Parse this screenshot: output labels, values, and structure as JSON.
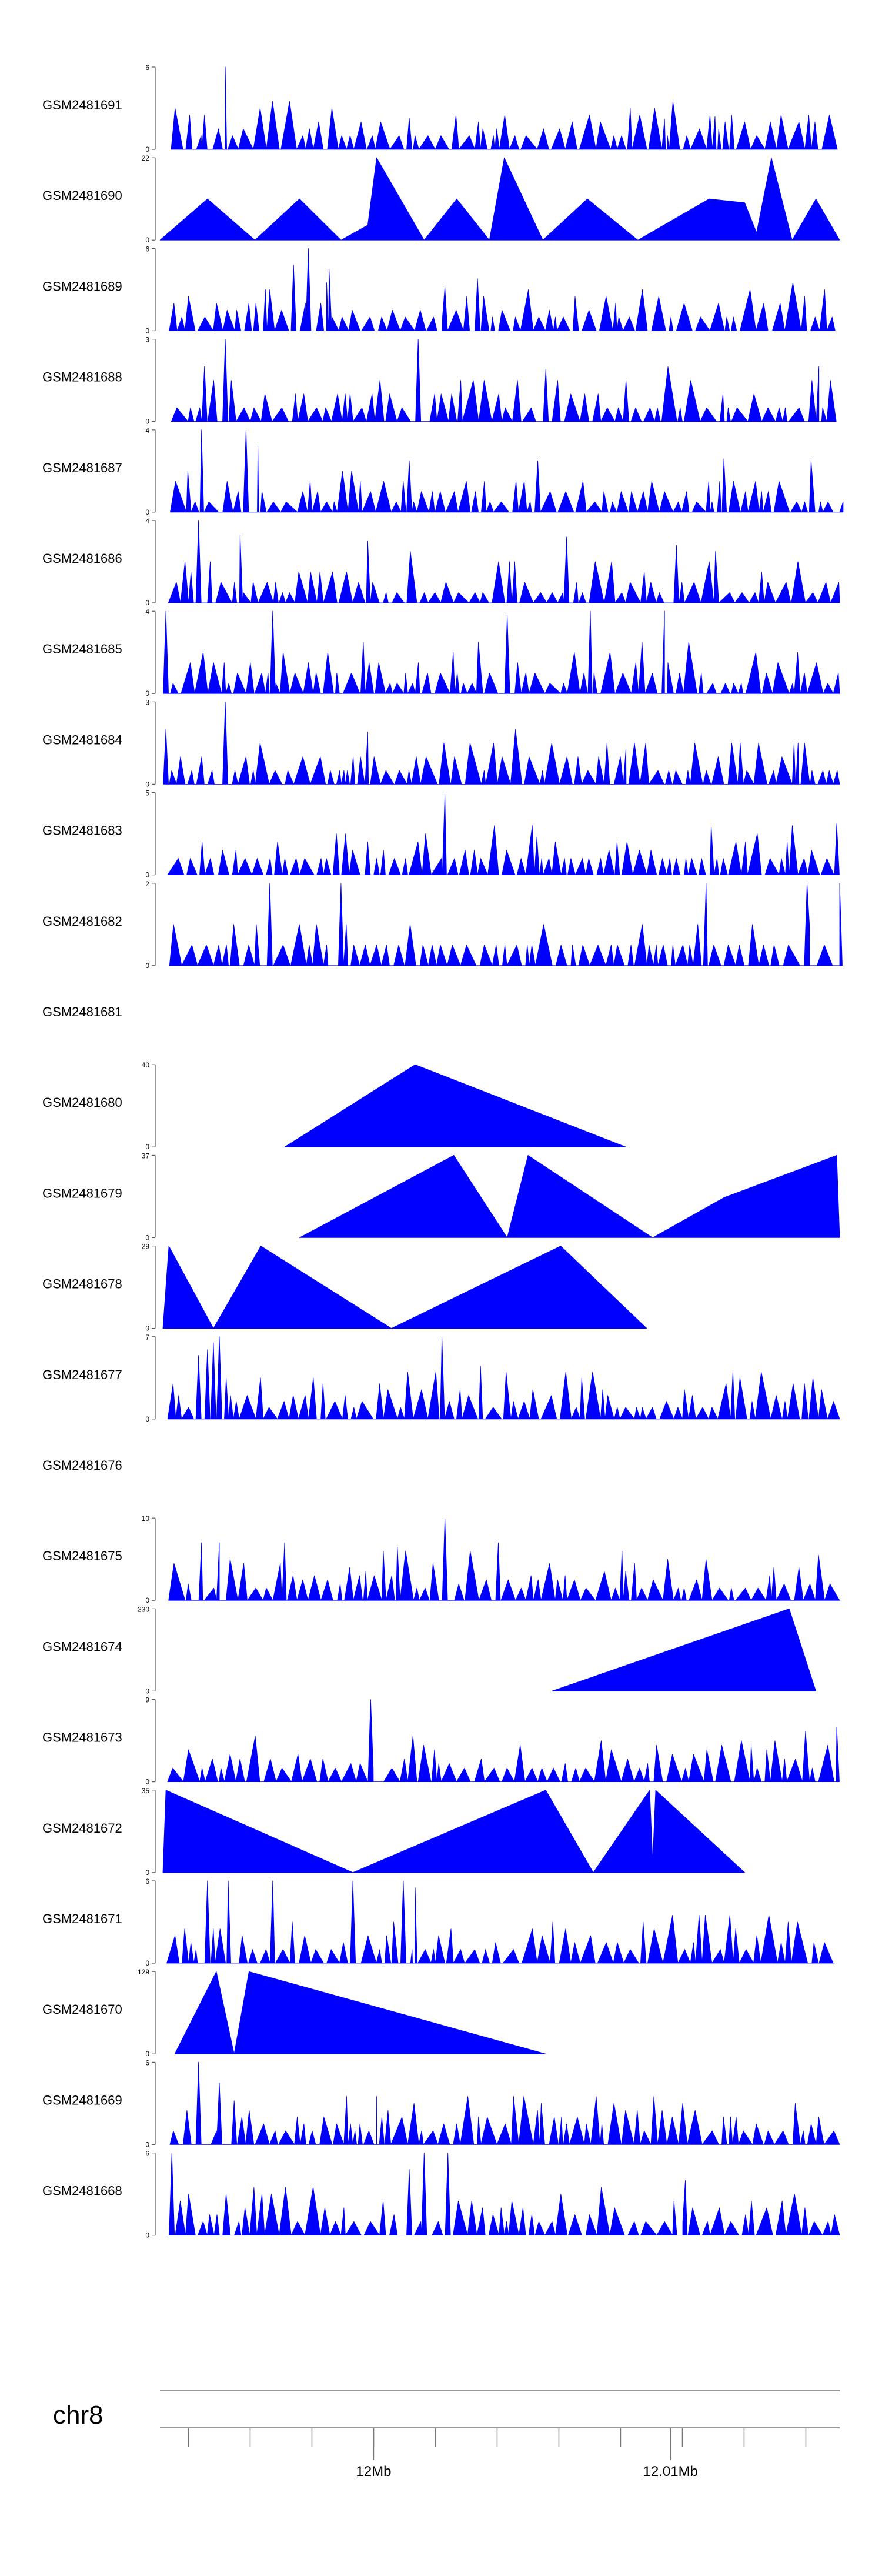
{
  "chart_data": {
    "type": "area",
    "chromosome": "chr8",
    "x_ticks": [
      {
        "label": "12Mb",
        "value": 12.0
      },
      {
        "label": "12.01Mb",
        "value": 12.01
      }
    ],
    "xlim": [
      11.9928,
      12.0157
    ],
    "minor_tick_step": 0.00208,
    "colors": {
      "fill": "#0000ff",
      "axis": "#555555",
      "text": "#000000"
    },
    "tracks": [
      {
        "name": "GSM2481691",
        "ylim": [
          0,
          6
        ],
        "shape": "dense",
        "seed": 11,
        "peaks": [
          [
            11.995,
            6.0
          ],
          [
            11.9943,
            2.5
          ],
          [
            12.0012,
            2.3
          ],
          [
            12.0098,
            2.2
          ],
          [
            12.0115,
            2.4
          ]
        ]
      },
      {
        "name": "GSM2481690",
        "ylim": [
          0,
          22
        ],
        "shape": "tri",
        "points": [
          [
            11.9928,
            0
          ],
          [
            11.9944,
            11
          ],
          [
            11.996,
            0
          ],
          [
            11.9975,
            11
          ],
          [
            11.9989,
            0
          ],
          [
            11.9998,
            4
          ],
          [
            12.0001,
            22
          ],
          [
            12.0017,
            0
          ],
          [
            12.0028,
            11
          ],
          [
            12.0039,
            0
          ],
          [
            12.0044,
            22
          ],
          [
            12.0057,
            0
          ],
          [
            12.0072,
            11
          ],
          [
            12.0089,
            0
          ],
          [
            12.0113,
            11
          ],
          [
            12.0125,
            10
          ],
          [
            12.0129,
            2
          ],
          [
            12.0134,
            22
          ],
          [
            12.0141,
            0
          ],
          [
            12.0149,
            11
          ],
          [
            12.0157,
            0
          ]
        ]
      },
      {
        "name": "GSM2481689",
        "ylim": [
          0,
          6
        ],
        "shape": "dense",
        "seed": 23,
        "peaks": [
          [
            11.9978,
            6.0
          ],
          [
            11.9973,
            4.8
          ],
          [
            11.9985,
            4.5
          ],
          [
            12.0035,
            3.8
          ],
          [
            12.0024,
            3.2
          ]
        ]
      },
      {
        "name": "GSM2481688",
        "ylim": [
          0,
          3
        ],
        "shape": "dense",
        "seed": 37,
        "peaks": [
          [
            11.995,
            3.0
          ],
          [
            12.0015,
            3.0
          ],
          [
            12.015,
            2.0
          ],
          [
            11.9943,
            2.0
          ],
          [
            12.0058,
            1.9
          ]
        ]
      },
      {
        "name": "GSM2481687",
        "ylim": [
          0,
          4
        ],
        "shape": "dense",
        "seed": 41,
        "peaks": [
          [
            11.9942,
            4.0
          ],
          [
            11.9957,
            4.0
          ],
          [
            11.9961,
            3.2
          ],
          [
            12.0012,
            2.5
          ],
          [
            12.0118,
            2.6
          ]
        ]
      },
      {
        "name": "GSM2481686",
        "ylim": [
          0,
          4
        ],
        "shape": "dense",
        "seed": 53,
        "peaks": [
          [
            11.9941,
            4.0
          ],
          [
            11.9955,
            3.3
          ],
          [
            11.9998,
            3.0
          ],
          [
            12.0065,
            3.2
          ],
          [
            12.0102,
            2.8
          ]
        ]
      },
      {
        "name": "GSM2481685",
        "ylim": [
          0,
          4
        ],
        "shape": "dense",
        "seed": 67,
        "peaks": [
          [
            11.993,
            4.0
          ],
          [
            11.9966,
            4.0
          ],
          [
            12.0098,
            4.0
          ],
          [
            12.0073,
            4.0
          ],
          [
            12.0045,
            3.8
          ]
        ]
      },
      {
        "name": "GSM2481684",
        "ylim": [
          0,
          3
        ],
        "shape": "dense",
        "seed": 71,
        "peaks": [
          [
            11.995,
            3.0
          ],
          [
            11.993,
            2.0
          ],
          [
            11.9998,
            1.9
          ],
          [
            12.0085,
            1.3
          ],
          [
            12.0143,
            1.5
          ]
        ]
      },
      {
        "name": "GSM2481683",
        "ylim": [
          0,
          5
        ],
        "shape": "dense",
        "seed": 83,
        "peaks": [
          [
            12.0024,
            4.9
          ],
          [
            12.0055,
            2.3
          ],
          [
            12.0082,
            2.0
          ],
          [
            11.9998,
            2.0
          ],
          [
            12.0156,
            3.1
          ]
        ]
      },
      {
        "name": "GSM2481682",
        "ylim": [
          0,
          2
        ],
        "shape": "dense",
        "seed": 97,
        "peaks": [
          [
            11.9965,
            2.0
          ],
          [
            11.9989,
            2.0
          ],
          [
            12.0112,
            2.0
          ],
          [
            12.0146,
            2.0
          ],
          [
            12.0157,
            2.0
          ]
        ]
      },
      {
        "name": "GSM2481681",
        "ylim": [
          0,
          1
        ],
        "shape": "empty"
      },
      {
        "name": "GSM2481680",
        "ylim": [
          0,
          40
        ],
        "shape": "tri",
        "points": [
          [
            11.997,
            0
          ],
          [
            12.0014,
            40
          ],
          [
            12.0085,
            0
          ]
        ]
      },
      {
        "name": "GSM2481679",
        "ylim": [
          0,
          37
        ],
        "shape": "tri",
        "points": [
          [
            11.9975,
            0
          ],
          [
            12.0027,
            37
          ],
          [
            12.0045,
            0
          ],
          [
            12.0052,
            37
          ],
          [
            12.0094,
            0
          ],
          [
            12.0118,
            18
          ],
          [
            12.0156,
            37
          ],
          [
            12.0157,
            0
          ]
        ]
      },
      {
        "name": "GSM2481678",
        "ylim": [
          0,
          29
        ],
        "shape": "tri",
        "points": [
          [
            11.9929,
            0
          ],
          [
            11.9931,
            29
          ],
          [
            11.9946,
            0
          ],
          [
            11.9962,
            29
          ],
          [
            12.0006,
            0
          ],
          [
            12.0063,
            29
          ],
          [
            12.0092,
            0
          ]
        ]
      },
      {
        "name": "GSM2481677",
        "ylim": [
          0,
          7
        ],
        "shape": "dense",
        "seed": 109,
        "peaks": [
          [
            11.9948,
            7.0
          ],
          [
            11.9946,
            6.5
          ],
          [
            11.9944,
            5.9
          ],
          [
            11.9941,
            5.4
          ],
          [
            12.0023,
            7.0
          ],
          [
            12.0036,
            4.5
          ]
        ]
      },
      {
        "name": "GSM2481676",
        "ylim": [
          0,
          1
        ],
        "shape": "empty"
      },
      {
        "name": "GSM2481675",
        "ylim": [
          0,
          10
        ],
        "shape": "dense",
        "seed": 127,
        "peaks": [
          [
            12.0024,
            10.0
          ],
          [
            11.9942,
            7.0
          ],
          [
            11.9948,
            7.0
          ],
          [
            11.997,
            7.0
          ],
          [
            12.0008,
            6.5
          ],
          [
            12.0042,
            7.0
          ]
        ]
      },
      {
        "name": "GSM2481674",
        "ylim": [
          0,
          230
        ],
        "shape": "tri",
        "points": [
          [
            12.006,
            0
          ],
          [
            12.014,
            230
          ],
          [
            12.0149,
            0
          ]
        ]
      },
      {
        "name": "GSM2481673",
        "ylim": [
          0,
          9
        ],
        "shape": "dense",
        "seed": 131,
        "peaks": [
          [
            11.9999,
            9.0
          ],
          [
            12.0156,
            6.0
          ]
        ]
      },
      {
        "name": "GSM2481672",
        "ylim": [
          0,
          35
        ],
        "shape": "tri",
        "points": [
          [
            11.9929,
            0
          ],
          [
            11.993,
            35
          ],
          [
            11.9993,
            0
          ],
          [
            12.0058,
            35
          ],
          [
            12.0074,
            0
          ],
          [
            12.0093,
            35
          ],
          [
            12.0094,
            5
          ],
          [
            12.0095,
            35
          ],
          [
            12.0125,
            0
          ]
        ]
      },
      {
        "name": "GSM2481671",
        "ylim": [
          0,
          6
        ],
        "shape": "dense",
        "seed": 139,
        "peaks": [
          [
            11.9944,
            6.0
          ],
          [
            11.9951,
            6.0
          ],
          [
            11.9966,
            6.0
          ],
          [
            11.9993,
            6.0
          ],
          [
            12.001,
            6.0
          ],
          [
            12.0014,
            5.5
          ]
        ]
      },
      {
        "name": "GSM2481670",
        "ylim": [
          0,
          129
        ],
        "shape": "tri",
        "points": [
          [
            11.9933,
            0
          ],
          [
            11.9947,
            129
          ],
          [
            11.9953,
            0
          ],
          [
            11.9958,
            129
          ],
          [
            12.0058,
            0
          ]
        ]
      },
      {
        "name": "GSM2481669",
        "ylim": [
          0,
          6
        ],
        "shape": "dense",
        "seed": 149,
        "peaks": [
          [
            11.9941,
            6.0
          ],
          [
            11.9948,
            4.5
          ],
          [
            12.0001,
            3.5
          ],
          [
            11.9953,
            3.2
          ]
        ]
      },
      {
        "name": "GSM2481668",
        "ylim": [
          0,
          6
        ],
        "shape": "dense",
        "seed": 157,
        "peaks": [
          [
            11.9932,
            6.0
          ],
          [
            12.0017,
            6.0
          ],
          [
            12.0025,
            6.0
          ],
          [
            12.0012,
            4.8
          ],
          [
            12.0105,
            4.0
          ]
        ]
      }
    ]
  }
}
